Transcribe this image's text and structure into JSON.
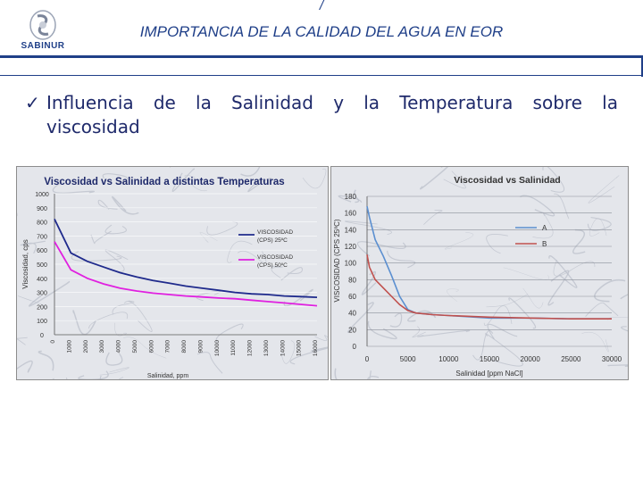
{
  "header": {
    "top_mark": "/",
    "title": "IMPORTANCIA DE LA CALIDAD DEL AGUA EN EOR",
    "logo_text": "SABINUR",
    "colors": {
      "brand": "#1f3f88",
      "text": "#1f2a6b"
    }
  },
  "bullet": {
    "icon": "check-icon",
    "glyph": "✓",
    "line1": "Influencia de la Salinidad y la Temperatura sobre la",
    "line2": "viscosidad"
  },
  "chart_data": [
    {
      "type": "line",
      "title": "Viscosidad vs Salinidad a distintas Temperaturas",
      "xlabel": "Salinidad, ppm",
      "ylabel": "Viscosidad, cps",
      "ylim": [
        0,
        1000
      ],
      "yticks": [
        "0",
        "100",
        "200",
        "300",
        "400",
        "500",
        "600",
        "700",
        "800",
        "900",
        "1000"
      ],
      "categories": [
        "0",
        "1000",
        "2000",
        "3000",
        "4000",
        "5000",
        "6000",
        "7000",
        "8000",
        "9000",
        "10000",
        "11000",
        "12000",
        "13000",
        "14000",
        "15000",
        "16000"
      ],
      "xtick_labels": [
        "0",
        "1000",
        "2000",
        "3000",
        "4000",
        "5000",
        "6000",
        "7000",
        "8000",
        "9000",
        "10000",
        "11000",
        "12000",
        "13000",
        "14000",
        "15000",
        "16000"
      ],
      "legend_position": "right",
      "series": [
        {
          "name": "VISCOSIDAD (CPS) 25ºC",
          "color": "#1f2a8c",
          "values": [
            820,
            580,
            520,
            480,
            440,
            410,
            385,
            365,
            345,
            330,
            315,
            300,
            290,
            285,
            275,
            270,
            265
          ]
        },
        {
          "name": "VISCOSIDAD (CPS) 50ºC",
          "color": "#e020e0",
          "values": [
            660,
            460,
            400,
            360,
            330,
            310,
            295,
            285,
            275,
            268,
            260,
            255,
            245,
            235,
            225,
            215,
            205
          ]
        }
      ]
    },
    {
      "type": "line",
      "title": "Viscosidad  vs Salinidad",
      "xlabel": "Salinidad [ppm NaCl]",
      "ylabel": "VISCOSIDAD (CPS 25ºC)",
      "xlim": [
        0,
        30000
      ],
      "ylim": [
        0,
        180
      ],
      "xticks": [
        "0",
        "5000",
        "10000",
        "15000",
        "20000",
        "25000",
        "30000"
      ],
      "yticks": [
        "0",
        "20",
        "40",
        "60",
        "80",
        "100",
        "120",
        "140",
        "160",
        "180"
      ],
      "legend_position": "top-right",
      "series": [
        {
          "name": "A",
          "color": "#5b8fd0",
          "x": [
            0,
            300,
            1000,
            2000,
            3000,
            4000,
            5000,
            6000,
            8000,
            10000,
            15000,
            20000,
            25000,
            30000
          ],
          "y": [
            168,
            155,
            128,
            108,
            85,
            60,
            44,
            40,
            38,
            37,
            34,
            34,
            33,
            33
          ]
        },
        {
          "name": "B",
          "color": "#c0504d",
          "x": [
            0,
            300,
            1000,
            2000,
            3000,
            4000,
            5000,
            6000,
            8000,
            10000,
            15000,
            20000,
            25000,
            30000
          ],
          "y": [
            110,
            95,
            80,
            70,
            60,
            50,
            43,
            40,
            38,
            37,
            35,
            34,
            33,
            33
          ]
        }
      ]
    }
  ]
}
